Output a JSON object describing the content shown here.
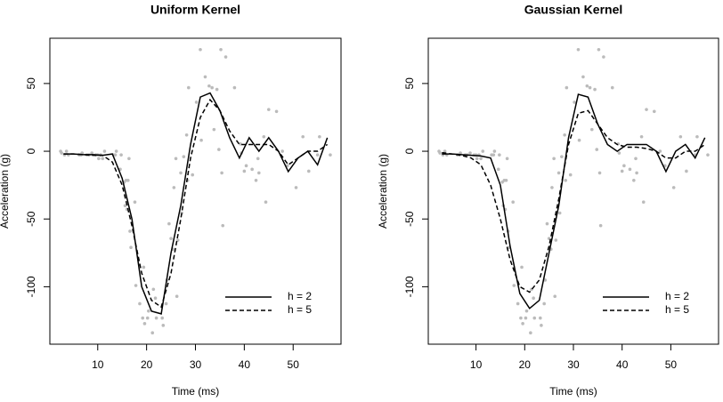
{
  "chart_data": [
    {
      "type": "line",
      "title": "Uniform Kernel",
      "xlabel": "Time (ms)",
      "ylabel": "Acceleration (g)",
      "xlim": [
        0.2,
        59.8
      ],
      "ylim": [
        -142.4,
        83.4
      ],
      "xticks": [
        10,
        20,
        30,
        40,
        50
      ],
      "yticks": [
        -100,
        -50,
        0,
        50
      ],
      "legend": "bottom right",
      "points": {
        "color": "#bbbbbb",
        "x": [
          2.4,
          2.6,
          3.2,
          3.6,
          4.0,
          6.2,
          6.6,
          6.8,
          7.8,
          8.2,
          8.8,
          9.6,
          10.0,
          10.2,
          10.6,
          11.0,
          11.4,
          13.2,
          13.6,
          13.8,
          14.6,
          14.8,
          15.4,
          15.6,
          15.8,
          16.0,
          16.2,
          16.4,
          16.6,
          16.8,
          17.6,
          17.8,
          18.6,
          19.2,
          19.4,
          19.6,
          20.2,
          20.4,
          21.2,
          21.4,
          21.8,
          22.0,
          23.2,
          23.4,
          24.0,
          24.2,
          24.6,
          25.0,
          25.4,
          25.6,
          26.0,
          26.2,
          26.4,
          27.0,
          27.2,
          27.6,
          28.2,
          28.4,
          28.6,
          29.4,
          30.2,
          31.0,
          31.2,
          32.0,
          32.8,
          33.4,
          33.8,
          34.4,
          34.8,
          35.2,
          35.4,
          35.6,
          36.2,
          38.0,
          39.2,
          39.4,
          40.0,
          40.4,
          41.6,
          42.4,
          42.8,
          43.0,
          44.0,
          44.4,
          45.0,
          46.6,
          47.8,
          48.8,
          50.6,
          52.0,
          53.2,
          55.0,
          55.4,
          57.6
        ],
        "values": [
          0,
          -1.3,
          -2.7,
          0,
          -2.7,
          -2.7,
          -2.7,
          -1.3,
          -2.7,
          -2.7,
          -1.3,
          -2.7,
          -2.7,
          -5.4,
          -2.7,
          -5.4,
          0,
          -2.7,
          -2.7,
          0,
          -13.3,
          -2.7,
          -22.8,
          -40.2,
          -21.5,
          -42.9,
          -21.5,
          -5.4,
          -59.0,
          -71.0,
          -37.5,
          -99.1,
          -112.5,
          -123.1,
          -85.6,
          -127.2,
          -123.1,
          -117.9,
          -134.0,
          -101.9,
          -108.4,
          -123.1,
          -123.1,
          -128.5,
          -112.5,
          -95.1,
          -53.5,
          -64.4,
          -72.3,
          -26.8,
          -5.4,
          -107.1,
          -65.6,
          -16.0,
          -45.6,
          -4.0,
          12.0,
          -21.5,
          46.9,
          -17.4,
          36.2,
          75.0,
          8.1,
          54.9,
          48.2,
          46.9,
          16.0,
          45.6,
          1.3,
          75.0,
          -16.0,
          -54.9,
          69.6,
          46.9,
          5.4,
          -1.3,
          -14.7,
          -10.7,
          -13.3,
          -21.5,
          -5.4,
          -16.0,
          10.7,
          -37.5,
          30.8,
          29.4,
          0,
          -10.7,
          -26.8,
          10.7,
          -14.7,
          -2.7,
          10.7,
          -2.7
        ]
      },
      "x": [
        3,
        5,
        7,
        9,
        11,
        13,
        15,
        17,
        19,
        21,
        23,
        25,
        27,
        29,
        31,
        33,
        35,
        37,
        39,
        41,
        43,
        45,
        47,
        49,
        51,
        53,
        55,
        57
      ],
      "series": [
        {
          "name": "h = 2",
          "color": "#000000",
          "linestyle": "solid",
          "values": [
            -2,
            -2,
            -2.5,
            -2.5,
            -3,
            -2,
            -20,
            -50,
            -100,
            -118,
            -120,
            -75,
            -40,
            5,
            40,
            43,
            30,
            10,
            -5,
            10,
            0,
            10,
            0,
            -15,
            -5,
            0,
            -10,
            10
          ]
        },
        {
          "name": "h = 5",
          "color": "#000000",
          "linestyle": "dashed",
          "values": [
            -2,
            -2,
            -2.5,
            -3,
            -3,
            -8,
            -25,
            -55,
            -90,
            -110,
            -115,
            -90,
            -50,
            -5,
            25,
            38,
            30,
            15,
            5,
            5,
            5,
            5,
            0,
            -10,
            -5,
            0,
            0,
            5
          ]
        }
      ]
    },
    {
      "type": "line",
      "title": "Gaussian Kernel",
      "xlabel": "Time (ms)",
      "ylabel": "Acceleration (g)",
      "xlim": [
        0.2,
        59.8
      ],
      "ylim": [
        -142.4,
        83.4
      ],
      "xticks": [
        10,
        20,
        30,
        40,
        50
      ],
      "yticks": [
        -100,
        -50,
        0,
        50
      ],
      "legend": "bottom right",
      "points": {
        "color": "#bbbbbb",
        "x": [
          2.4,
          2.6,
          3.2,
          3.6,
          4.0,
          6.2,
          6.6,
          6.8,
          7.8,
          8.2,
          8.8,
          9.6,
          10.0,
          10.2,
          10.6,
          11.0,
          11.4,
          13.2,
          13.6,
          13.8,
          14.6,
          14.8,
          15.4,
          15.6,
          15.8,
          16.0,
          16.2,
          16.4,
          16.6,
          16.8,
          17.6,
          17.8,
          18.6,
          19.2,
          19.4,
          19.6,
          20.2,
          20.4,
          21.2,
          21.4,
          21.8,
          22.0,
          23.2,
          23.4,
          24.0,
          24.2,
          24.6,
          25.0,
          25.4,
          25.6,
          26.0,
          26.2,
          26.4,
          27.0,
          27.2,
          27.6,
          28.2,
          28.4,
          28.6,
          29.4,
          30.2,
          31.0,
          31.2,
          32.0,
          32.8,
          33.4,
          33.8,
          34.4,
          34.8,
          35.2,
          35.4,
          35.6,
          36.2,
          38.0,
          39.2,
          39.4,
          40.0,
          40.4,
          41.6,
          42.4,
          42.8,
          43.0,
          44.0,
          44.4,
          45.0,
          46.6,
          47.8,
          48.8,
          50.6,
          52.0,
          53.2,
          55.0,
          55.4,
          57.6
        ],
        "values": [
          0,
          -1.3,
          -2.7,
          0,
          -2.7,
          -2.7,
          -2.7,
          -1.3,
          -2.7,
          -2.7,
          -1.3,
          -2.7,
          -2.7,
          -5.4,
          -2.7,
          -5.4,
          0,
          -2.7,
          -2.7,
          0,
          -13.3,
          -2.7,
          -22.8,
          -40.2,
          -21.5,
          -42.9,
          -21.5,
          -5.4,
          -59.0,
          -71.0,
          -37.5,
          -99.1,
          -112.5,
          -123.1,
          -85.6,
          -127.2,
          -123.1,
          -117.9,
          -134.0,
          -101.9,
          -108.4,
          -123.1,
          -123.1,
          -128.5,
          -112.5,
          -95.1,
          -53.5,
          -64.4,
          -72.3,
          -26.8,
          -5.4,
          -107.1,
          -65.6,
          -16.0,
          -45.6,
          -4.0,
          12.0,
          -21.5,
          46.9,
          -17.4,
          36.2,
          75.0,
          8.1,
          54.9,
          48.2,
          46.9,
          16.0,
          45.6,
          1.3,
          75.0,
          -16.0,
          -54.9,
          69.6,
          46.9,
          5.4,
          -1.3,
          -14.7,
          -10.7,
          -13.3,
          -21.5,
          -5.4,
          -16.0,
          10.7,
          -37.5,
          30.8,
          29.4,
          0,
          -10.7,
          -26.8,
          10.7,
          -14.7,
          -2.7,
          10.7,
          -2.7
        ]
      },
      "x": [
        3,
        5,
        7,
        9,
        11,
        13,
        15,
        17,
        19,
        21,
        23,
        25,
        27,
        29,
        31,
        33,
        35,
        37,
        39,
        41,
        43,
        45,
        47,
        49,
        51,
        53,
        55,
        57
      ],
      "series": [
        {
          "name": "h = 2",
          "color": "#000000",
          "linestyle": "solid",
          "values": [
            -2,
            -2,
            -2.5,
            -3,
            -3.5,
            -5,
            -25,
            -70,
            -105,
            -116,
            -110,
            -75,
            -40,
            10,
            42,
            40,
            20,
            5,
            0,
            5,
            5,
            5,
            0,
            -15,
            0,
            5,
            -5,
            10
          ]
        },
        {
          "name": "h = 5",
          "color": "#000000",
          "linestyle": "dashed",
          "values": [
            -1,
            -2,
            -3,
            -5,
            -10,
            -25,
            -50,
            -80,
            -100,
            -104,
            -95,
            -70,
            -35,
            5,
            28,
            30,
            20,
            10,
            5,
            3,
            3,
            2,
            0,
            -5,
            -5,
            0,
            0,
            5
          ]
        }
      ]
    }
  ]
}
